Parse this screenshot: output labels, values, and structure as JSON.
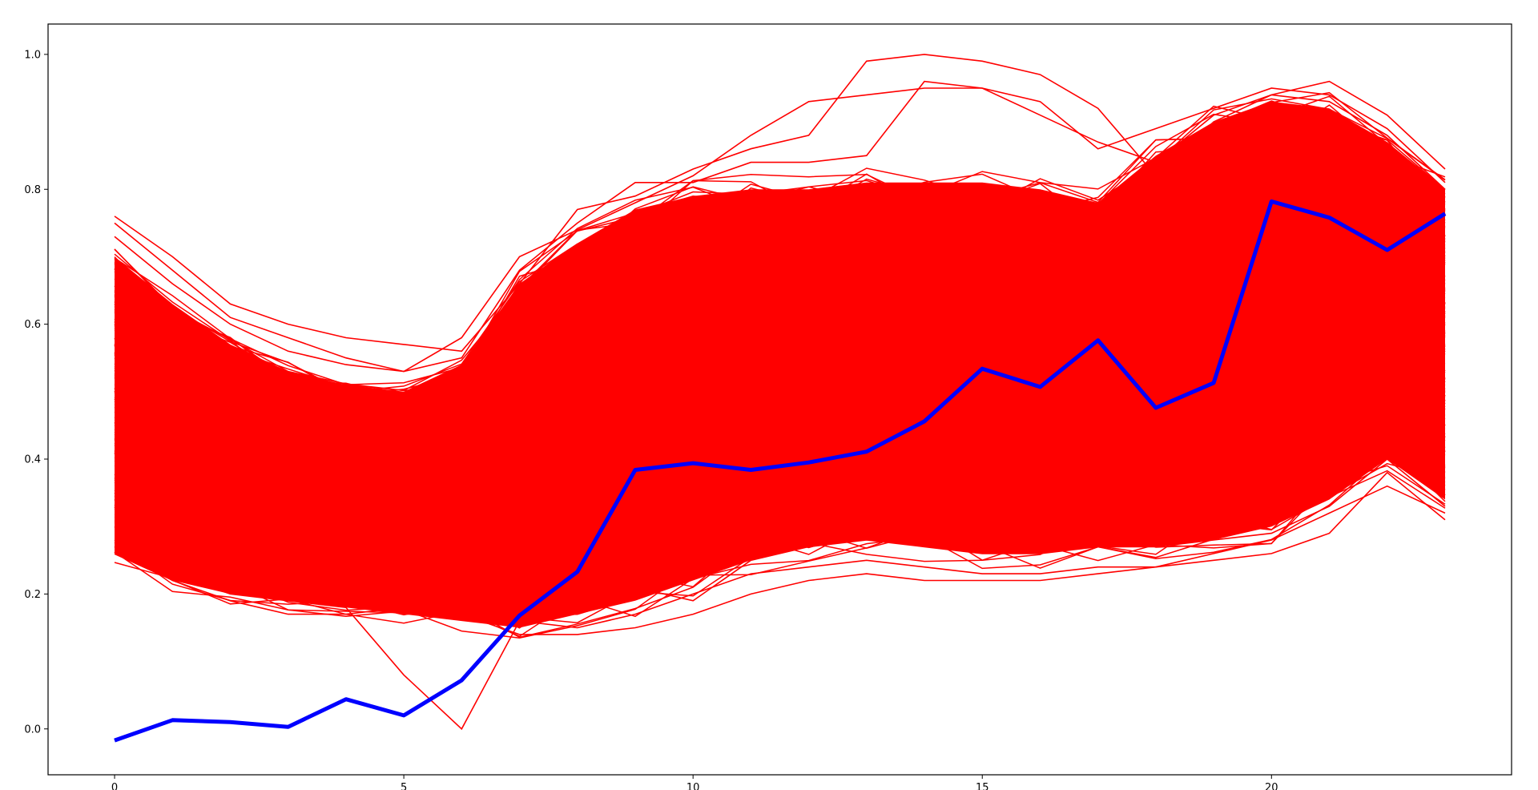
{
  "chart_data": {
    "type": "line",
    "title": "",
    "xlabel": "",
    "ylabel": "",
    "xlim": [
      -1.15,
      24.15
    ],
    "ylim": [
      -0.068,
      1.045
    ],
    "x_ticks": [
      0,
      5,
      10,
      15,
      20
    ],
    "x_tick_labels": [
      "0",
      "5",
      "10",
      "15",
      "20"
    ],
    "y_ticks": [
      0.0,
      0.2,
      0.4,
      0.6,
      0.8,
      1.0
    ],
    "y_tick_labels": [
      "0.0",
      "0.2",
      "0.4",
      "0.6",
      "0.8",
      "1.0"
    ],
    "grid": false,
    "legend": "none",
    "background_series": {
      "color": "#ff0000",
      "count": 1000,
      "x": [
        0,
        1,
        2,
        3,
        4,
        5,
        6,
        7,
        8,
        9,
        10,
        11,
        12,
        13,
        14,
        15,
        16,
        17,
        18,
        19,
        20,
        21,
        22,
        23
      ],
      "band_low": [
        0.26,
        0.22,
        0.2,
        0.19,
        0.18,
        0.17,
        0.16,
        0.15,
        0.17,
        0.19,
        0.22,
        0.25,
        0.27,
        0.28,
        0.27,
        0.26,
        0.26,
        0.27,
        0.27,
        0.28,
        0.3,
        0.34,
        0.4,
        0.34
      ],
      "band_high": [
        0.7,
        0.63,
        0.57,
        0.53,
        0.51,
        0.5,
        0.54,
        0.66,
        0.72,
        0.77,
        0.79,
        0.8,
        0.8,
        0.81,
        0.81,
        0.81,
        0.8,
        0.78,
        0.85,
        0.9,
        0.93,
        0.92,
        0.87,
        0.8
      ],
      "outliers": [
        {
          "values": [
            0.76,
            0.7,
            0.63,
            0.6,
            0.58,
            0.57,
            0.56,
            0.66,
            0.77,
            0.79,
            0.83,
            0.86,
            0.88,
            0.99,
            1.0,
            0.99,
            0.97,
            0.92,
            0.82,
            0.9,
            0.94,
            0.96,
            0.91,
            0.83
          ]
        },
        {
          "values": [
            0.75,
            0.68,
            0.61,
            0.58,
            0.55,
            0.53,
            0.55,
            0.68,
            0.75,
            0.81,
            0.81,
            0.84,
            0.84,
            0.85,
            0.96,
            0.95,
            0.93,
            0.86,
            0.89,
            0.92,
            0.95,
            0.94,
            0.89,
            0.81
          ]
        },
        {
          "values": [
            0.73,
            0.66,
            0.6,
            0.56,
            0.54,
            0.53,
            0.58,
            0.7,
            0.74,
            0.78,
            0.82,
            0.88,
            0.93,
            0.94,
            0.95,
            0.95,
            0.91,
            0.87,
            0.84,
            0.91,
            0.94,
            0.93,
            0.88,
            0.8
          ]
        },
        {
          "values": [
            0.27,
            0.22,
            0.19,
            0.17,
            0.17,
            0.18,
            0.17,
            0.14,
            0.14,
            0.15,
            0.17,
            0.2,
            0.22,
            0.23,
            0.22,
            0.22,
            0.22,
            0.23,
            0.24,
            0.25,
            0.26,
            0.29,
            0.38,
            0.31
          ]
        },
        {
          "values": [
            0.28,
            0.23,
            0.2,
            0.19,
            0.18,
            0.08,
            0.0,
            0.16,
            0.19,
            0.21,
            0.19,
            0.25,
            0.27,
            0.28,
            0.27,
            0.26,
            0.26,
            0.27,
            0.27,
            0.28,
            0.29,
            0.33,
            0.4,
            0.33
          ]
        },
        {
          "values": [
            0.3,
            0.26,
            0.21,
            0.19,
            0.19,
            0.18,
            0.17,
            0.16,
            0.15,
            0.17,
            0.2,
            0.23,
            0.24,
            0.25,
            0.24,
            0.23,
            0.23,
            0.24,
            0.24,
            0.26,
            0.28,
            0.32,
            0.36,
            0.32
          ]
        }
      ]
    },
    "series": [
      {
        "color": "#0000ff",
        "x": [
          0,
          1,
          2,
          3,
          4,
          5,
          6,
          7,
          8,
          9,
          10,
          11,
          12,
          13,
          14,
          15,
          16,
          17,
          18,
          19,
          20,
          21,
          22,
          23
        ],
        "values": [
          -0.017,
          0.013,
          0.01,
          0.003,
          0.044,
          0.02,
          0.072,
          0.168,
          0.233,
          0.384,
          0.394,
          0.384,
          0.395,
          0.411,
          0.456,
          0.534,
          0.507,
          0.576,
          0.476,
          0.513,
          0.782,
          0.758,
          0.71,
          0.764
        ]
      }
    ]
  }
}
